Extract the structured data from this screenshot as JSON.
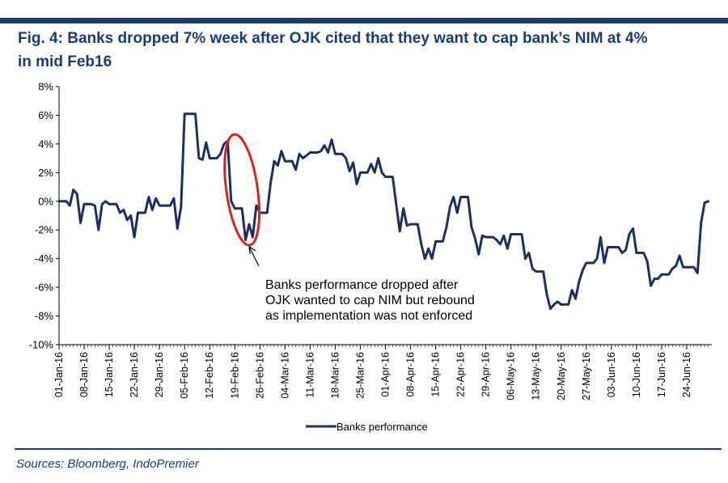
{
  "title_line1": "Fig. 4:  Banks dropped 7% week after OJK cited that they want to cap bank’s NIM at 4%",
  "title_line2": "in mid Feb16",
  "source": "Sources: Bloomberg, IndoPremier",
  "chart_data": {
    "type": "line",
    "title": "Fig. 4: Banks dropped 7% week after OJK cited that they want to cap bank’s NIM at 4% in mid Feb16",
    "xlabel": "",
    "ylabel": "",
    "ylim": [
      -10,
      8
    ],
    "yticks": [
      8,
      6,
      4,
      2,
      0,
      -2,
      -4,
      -6,
      -8,
      -10
    ],
    "ytick_labels": [
      "8%",
      "6%",
      "4%",
      "2%",
      "0%",
      "-2%",
      "-4%",
      "-6%",
      "-8%",
      "-10%"
    ],
    "xlim": [
      "2016-01-01",
      "2016-07-01"
    ],
    "xtick_labels": [
      "01-Jan-16",
      "08-Jan-16",
      "15-Jan-16",
      "22-Jan-16",
      "29-Jan-16",
      "05-Feb-16",
      "12-Feb-16",
      "19-Feb-16",
      "26-Feb-16",
      "04-Mar-16",
      "11-Mar-16",
      "18-Mar-16",
      "25-Mar-16",
      "01-Apr-16",
      "08-Apr-16",
      "15-Apr-16",
      "22-Apr-16",
      "29-Apr-16",
      "06-May-16",
      "13-May-16",
      "20-May-16",
      "27-May-16",
      "03-Jun-16",
      "10-Jun-16",
      "17-Jun-16",
      "24-Jun-16"
    ],
    "grid": false,
    "legend": "bottom-center",
    "line_color": "#1f2f5c",
    "highlight_color": "#d9261c",
    "annotation": {
      "lines": [
        "Banks performance dropped after",
        "OJK wanted to cap NIM but rebound",
        "as implementation was not enforced"
      ],
      "arrow_target": {
        "x": "2016-02-23",
        "y": -2.6
      }
    },
    "series": [
      {
        "name": "Banks performance",
        "points": [
          {
            "x": "2016-01-01",
            "y": 0.0
          },
          {
            "x": "2016-01-02",
            "y": 0.0
          },
          {
            "x": "2016-01-03",
            "y": 0.0
          },
          {
            "x": "2016-01-04",
            "y": -0.3
          },
          {
            "x": "2016-01-05",
            "y": 0.8
          },
          {
            "x": "2016-01-06",
            "y": 0.5
          },
          {
            "x": "2016-01-07",
            "y": -1.5
          },
          {
            "x": "2016-01-08",
            "y": -0.2
          },
          {
            "x": "2016-01-09",
            "y": -0.2
          },
          {
            "x": "2016-01-10",
            "y": -0.2
          },
          {
            "x": "2016-01-11",
            "y": -0.3
          },
          {
            "x": "2016-01-12",
            "y": -2.0
          },
          {
            "x": "2016-01-13",
            "y": -0.2
          },
          {
            "x": "2016-01-14",
            "y": 0.0
          },
          {
            "x": "2016-01-15",
            "y": -0.2
          },
          {
            "x": "2016-01-16",
            "y": -0.2
          },
          {
            "x": "2016-01-17",
            "y": -0.2
          },
          {
            "x": "2016-01-18",
            "y": -0.8
          },
          {
            "x": "2016-01-19",
            "y": -0.6
          },
          {
            "x": "2016-01-20",
            "y": -1.3
          },
          {
            "x": "2016-01-21",
            "y": -1.0
          },
          {
            "x": "2016-01-22",
            "y": -2.5
          },
          {
            "x": "2016-01-23",
            "y": -0.8
          },
          {
            "x": "2016-01-24",
            "y": -0.8
          },
          {
            "x": "2016-01-25",
            "y": -0.8
          },
          {
            "x": "2016-01-26",
            "y": 0.3
          },
          {
            "x": "2016-01-27",
            "y": -0.6
          },
          {
            "x": "2016-01-28",
            "y": 0.2
          },
          {
            "x": "2016-01-29",
            "y": -0.3
          },
          {
            "x": "2016-01-30",
            "y": -0.3
          },
          {
            "x": "2016-01-31",
            "y": -0.3
          },
          {
            "x": "2016-02-01",
            "y": -0.3
          },
          {
            "x": "2016-02-02",
            "y": 0.2
          },
          {
            "x": "2016-02-03",
            "y": -1.9
          },
          {
            "x": "2016-02-04",
            "y": -0.4
          },
          {
            "x": "2016-02-05",
            "y": 6.1
          },
          {
            "x": "2016-02-06",
            "y": 6.1
          },
          {
            "x": "2016-02-07",
            "y": 6.1
          },
          {
            "x": "2016-02-08",
            "y": 6.1
          },
          {
            "x": "2016-02-09",
            "y": 3.0
          },
          {
            "x": "2016-02-10",
            "y": 2.9
          },
          {
            "x": "2016-02-11",
            "y": 4.1
          },
          {
            "x": "2016-02-12",
            "y": 3.0
          },
          {
            "x": "2016-02-13",
            "y": 3.0
          },
          {
            "x": "2016-02-14",
            "y": 3.0
          },
          {
            "x": "2016-02-15",
            "y": 3.3
          },
          {
            "x": "2016-02-16",
            "y": 4.0
          },
          {
            "x": "2016-02-17",
            "y": 4.2
          },
          {
            "x": "2016-02-18",
            "y": 0.0
          },
          {
            "x": "2016-02-19",
            "y": -0.5
          },
          {
            "x": "2016-02-20",
            "y": -0.5
          },
          {
            "x": "2016-02-21",
            "y": -0.5
          },
          {
            "x": "2016-02-22",
            "y": -2.7
          },
          {
            "x": "2016-02-23",
            "y": -1.6
          },
          {
            "x": "2016-02-24",
            "y": -2.5
          },
          {
            "x": "2016-02-25",
            "y": -0.3
          },
          {
            "x": "2016-02-26",
            "y": -0.8
          },
          {
            "x": "2016-02-27",
            "y": -0.8
          },
          {
            "x": "2016-02-28",
            "y": -0.8
          },
          {
            "x": "2016-02-29",
            "y": 1.3
          },
          {
            "x": "2016-03-01",
            "y": 2.8
          },
          {
            "x": "2016-03-02",
            "y": 2.5
          },
          {
            "x": "2016-03-03",
            "y": 3.5
          },
          {
            "x": "2016-03-04",
            "y": 2.8
          },
          {
            "x": "2016-03-05",
            "y": 2.8
          },
          {
            "x": "2016-03-06",
            "y": 2.8
          },
          {
            "x": "2016-03-07",
            "y": 2.2
          },
          {
            "x": "2016-03-08",
            "y": 3.3
          },
          {
            "x": "2016-03-09",
            "y": 3.0
          },
          {
            "x": "2016-03-10",
            "y": 3.2
          },
          {
            "x": "2016-03-11",
            "y": 3.4
          },
          {
            "x": "2016-03-12",
            "y": 3.4
          },
          {
            "x": "2016-03-13",
            "y": 3.4
          },
          {
            "x": "2016-03-14",
            "y": 3.5
          },
          {
            "x": "2016-03-15",
            "y": 3.9
          },
          {
            "x": "2016-03-16",
            "y": 3.4
          },
          {
            "x": "2016-03-17",
            "y": 4.3
          },
          {
            "x": "2016-03-18",
            "y": 3.3
          },
          {
            "x": "2016-03-19",
            "y": 3.3
          },
          {
            "x": "2016-03-20",
            "y": 3.3
          },
          {
            "x": "2016-03-21",
            "y": 3.0
          },
          {
            "x": "2016-03-22",
            "y": 2.1
          },
          {
            "x": "2016-03-23",
            "y": 2.7
          },
          {
            "x": "2016-03-24",
            "y": 1.2
          },
          {
            "x": "2016-03-25",
            "y": 2.0
          },
          {
            "x": "2016-03-26",
            "y": 2.0
          },
          {
            "x": "2016-03-27",
            "y": 2.0
          },
          {
            "x": "2016-03-28",
            "y": 2.6
          },
          {
            "x": "2016-03-29",
            "y": 2.0
          },
          {
            "x": "2016-03-30",
            "y": 3.0
          },
          {
            "x": "2016-03-31",
            "y": 2.0
          },
          {
            "x": "2016-04-01",
            "y": 1.7
          },
          {
            "x": "2016-04-02",
            "y": 1.7
          },
          {
            "x": "2016-04-03",
            "y": 1.7
          },
          {
            "x": "2016-04-04",
            "y": -0.2
          },
          {
            "x": "2016-04-05",
            "y": -2.1
          },
          {
            "x": "2016-04-06",
            "y": -0.5
          },
          {
            "x": "2016-04-07",
            "y": -1.7
          },
          {
            "x": "2016-04-08",
            "y": -1.6
          },
          {
            "x": "2016-04-09",
            "y": -1.6
          },
          {
            "x": "2016-04-10",
            "y": -1.6
          },
          {
            "x": "2016-04-11",
            "y": -3.0
          },
          {
            "x": "2016-04-12",
            "y": -4.0
          },
          {
            "x": "2016-04-13",
            "y": -3.3
          },
          {
            "x": "2016-04-14",
            "y": -4.0
          },
          {
            "x": "2016-04-15",
            "y": -2.8
          },
          {
            "x": "2016-04-16",
            "y": -2.8
          },
          {
            "x": "2016-04-17",
            "y": -2.8
          },
          {
            "x": "2016-04-18",
            "y": -1.8
          },
          {
            "x": "2016-04-19",
            "y": -0.4
          },
          {
            "x": "2016-04-20",
            "y": 0.3
          },
          {
            "x": "2016-04-21",
            "y": -0.8
          },
          {
            "x": "2016-04-22",
            "y": 0.3
          },
          {
            "x": "2016-04-23",
            "y": 0.3
          },
          {
            "x": "2016-04-24",
            "y": 0.3
          },
          {
            "x": "2016-04-25",
            "y": -1.8
          },
          {
            "x": "2016-04-26",
            "y": -2.6
          },
          {
            "x": "2016-04-27",
            "y": -3.7
          },
          {
            "x": "2016-04-28",
            "y": -2.4
          },
          {
            "x": "2016-04-29",
            "y": -2.5
          },
          {
            "x": "2016-04-30",
            "y": -2.5
          },
          {
            "x": "2016-05-01",
            "y": -2.5
          },
          {
            "x": "2016-05-02",
            "y": -2.7
          },
          {
            "x": "2016-05-03",
            "y": -3.0
          },
          {
            "x": "2016-05-04",
            "y": -2.4
          },
          {
            "x": "2016-05-05",
            "y": -3.3
          },
          {
            "x": "2016-05-06",
            "y": -2.3
          },
          {
            "x": "2016-05-07",
            "y": -2.3
          },
          {
            "x": "2016-05-08",
            "y": -2.3
          },
          {
            "x": "2016-05-09",
            "y": -2.3
          },
          {
            "x": "2016-05-10",
            "y": -4.0
          },
          {
            "x": "2016-05-11",
            "y": -3.6
          },
          {
            "x": "2016-05-12",
            "y": -4.7
          },
          {
            "x": "2016-05-13",
            "y": -4.9
          },
          {
            "x": "2016-05-14",
            "y": -4.9
          },
          {
            "x": "2016-05-15",
            "y": -4.9
          },
          {
            "x": "2016-05-16",
            "y": -6.5
          },
          {
            "x": "2016-05-17",
            "y": -7.5
          },
          {
            "x": "2016-05-18",
            "y": -7.2
          },
          {
            "x": "2016-05-19",
            "y": -7.0
          },
          {
            "x": "2016-05-20",
            "y": -7.2
          },
          {
            "x": "2016-05-21",
            "y": -7.2
          },
          {
            "x": "2016-05-22",
            "y": -7.2
          },
          {
            "x": "2016-05-23",
            "y": -6.2
          },
          {
            "x": "2016-05-24",
            "y": -6.8
          },
          {
            "x": "2016-05-25",
            "y": -5.6
          },
          {
            "x": "2016-05-26",
            "y": -4.8
          },
          {
            "x": "2016-05-27",
            "y": -4.3
          },
          {
            "x": "2016-05-28",
            "y": -4.3
          },
          {
            "x": "2016-05-29",
            "y": -4.3
          },
          {
            "x": "2016-05-30",
            "y": -4.0
          },
          {
            "x": "2016-05-31",
            "y": -2.5
          },
          {
            "x": "2016-06-01",
            "y": -4.3
          },
          {
            "x": "2016-06-02",
            "y": -3.2
          },
          {
            "x": "2016-06-03",
            "y": -3.2
          },
          {
            "x": "2016-06-04",
            "y": -3.2
          },
          {
            "x": "2016-06-05",
            "y": -3.2
          },
          {
            "x": "2016-06-06",
            "y": -3.6
          },
          {
            "x": "2016-06-07",
            "y": -3.4
          },
          {
            "x": "2016-06-08",
            "y": -2.3
          },
          {
            "x": "2016-06-09",
            "y": -1.9
          },
          {
            "x": "2016-06-10",
            "y": -3.6
          },
          {
            "x": "2016-06-11",
            "y": -3.6
          },
          {
            "x": "2016-06-12",
            "y": -3.6
          },
          {
            "x": "2016-06-13",
            "y": -4.2
          },
          {
            "x": "2016-06-14",
            "y": -5.9
          },
          {
            "x": "2016-06-15",
            "y": -5.4
          },
          {
            "x": "2016-06-16",
            "y": -5.4
          },
          {
            "x": "2016-06-17",
            "y": -5.1
          },
          {
            "x": "2016-06-18",
            "y": -5.1
          },
          {
            "x": "2016-06-19",
            "y": -5.1
          },
          {
            "x": "2016-06-20",
            "y": -4.7
          },
          {
            "x": "2016-06-21",
            "y": -4.5
          },
          {
            "x": "2016-06-22",
            "y": -3.8
          },
          {
            "x": "2016-06-23",
            "y": -4.6
          },
          {
            "x": "2016-06-24",
            "y": -4.6
          },
          {
            "x": "2016-06-25",
            "y": -4.6
          },
          {
            "x": "2016-06-26",
            "y": -4.6
          },
          {
            "x": "2016-06-27",
            "y": -5.0
          },
          {
            "x": "2016-06-28",
            "y": -1.5
          },
          {
            "x": "2016-06-29",
            "y": -0.1
          },
          {
            "x": "2016-06-30",
            "y": 0.0
          }
        ]
      }
    ]
  }
}
